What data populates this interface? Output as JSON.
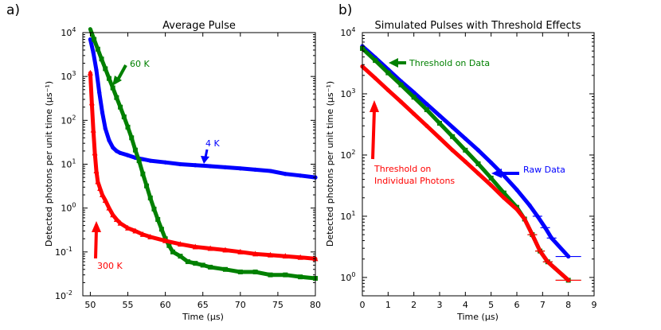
{
  "chart_data": [
    {
      "type": "scatter",
      "panel_label": "a)",
      "title": "Average Pulse",
      "xlabel": "Time (μs)",
      "ylabel": "Detected photons per unit time (μs⁻¹)",
      "xlim": [
        49,
        80
      ],
      "ylim_log10": [
        -2,
        4
      ],
      "xticks": [
        50,
        55,
        60,
        65,
        70,
        75,
        80
      ],
      "xtick_labels": [
        "50",
        "55",
        "60",
        "65",
        "70",
        "75",
        "80"
      ],
      "yticks_log10": [
        -2,
        -1,
        0,
        1,
        2,
        3,
        4
      ],
      "ytick_labels": [
        [
          "10",
          "-2"
        ],
        [
          "10",
          "-1"
        ],
        [
          "10",
          "0"
        ],
        [
          "10",
          "1"
        ],
        [
          "10",
          "2"
        ],
        [
          "10",
          "3"
        ],
        [
          "10",
          "4"
        ]
      ],
      "series": [
        {
          "name": "4 K",
          "color": "#0000ff",
          "marker": "circle",
          "x": [
            50.0,
            50.4,
            50.8,
            51.2,
            51.6,
            52.0,
            52.5,
            53.0,
            53.5,
            54.0,
            55.0,
            56.0,
            57.0,
            58.0,
            60.0,
            62.0,
            64.0,
            66.0,
            68.0,
            70.0,
            72.0,
            74.0,
            76.0,
            78.0,
            80.0
          ],
          "y": [
            7000,
            3500,
            1400,
            430,
            150,
            65,
            35,
            24,
            20,
            18,
            16,
            14,
            13,
            12,
            11,
            10,
            9.5,
            9,
            8.5,
            8,
            7.5,
            7,
            6,
            5.5,
            5
          ]
        },
        {
          "name": "60 K",
          "color": "#008000",
          "marker": "square",
          "x": [
            50.0,
            50.5,
            51.0,
            51.5,
            52.0,
            52.5,
            53.0,
            53.5,
            54.0,
            54.5,
            55.0,
            55.5,
            56.0,
            56.5,
            57.0,
            57.5,
            58.0,
            58.5,
            59.0,
            59.5,
            60.0,
            60.5,
            61.0,
            62.0,
            63.0,
            64.0,
            65.0,
            66.0,
            68.0,
            70.0,
            72.0,
            74.0,
            76.0,
            78.0,
            80.0
          ],
          "y": [
            12000,
            7000,
            4200,
            2500,
            1500,
            900,
            550,
            330,
            200,
            120,
            70,
            40,
            21,
            12,
            6,
            3.2,
            1.7,
            0.95,
            0.55,
            0.33,
            0.2,
            0.14,
            0.1,
            0.08,
            0.06,
            0.055,
            0.05,
            0.045,
            0.04,
            0.035,
            0.035,
            0.03,
            0.03,
            0.027,
            0.025
          ]
        },
        {
          "name": "300 K",
          "color": "#ff0000",
          "marker": "triangle",
          "x": [
            50.0,
            50.2,
            50.4,
            50.6,
            50.8,
            51.0,
            51.3,
            51.6,
            52.0,
            52.5,
            53.0,
            53.5,
            54.0,
            55.0,
            56.0,
            57.0,
            58.0,
            60.0,
            62.0,
            64.0,
            66.0,
            68.0,
            70.0,
            72.0,
            74.0,
            76.0,
            78.0,
            80.0
          ],
          "y": [
            1200,
            250,
            60,
            18,
            7,
            4,
            2.8,
            2,
            1.5,
            1,
            0.7,
            0.55,
            0.45,
            0.35,
            0.3,
            0.25,
            0.22,
            0.18,
            0.15,
            0.13,
            0.12,
            0.11,
            0.1,
            0.09,
            0.085,
            0.08,
            0.075,
            0.07
          ]
        }
      ],
      "annotations": [
        {
          "text": "60 K",
          "color": "#008000"
        },
        {
          "text": "4 K",
          "color": "#0000ff"
        },
        {
          "text": "300 K",
          "color": "#ff0000"
        }
      ]
    },
    {
      "type": "scatter",
      "panel_label": "b)",
      "title": "Simulated Pulses with Threshold Effects",
      "xlabel": "Time (μs)",
      "ylabel": "Detected photons per unit time (μs⁻¹)",
      "xlim": [
        0,
        9
      ],
      "ylim_log10": [
        -0.3,
        4
      ],
      "xticks": [
        0,
        1,
        2,
        3,
        4,
        5,
        6,
        7,
        8,
        9
      ],
      "xtick_labels": [
        "0",
        "1",
        "2",
        "3",
        "4",
        "5",
        "6",
        "7",
        "8",
        "9"
      ],
      "yticks_log10": [
        0,
        1,
        2,
        3,
        4
      ],
      "ytick_labels": [
        [
          "10",
          "0"
        ],
        [
          "10",
          "1"
        ],
        [
          "10",
          "2"
        ],
        [
          "10",
          "3"
        ],
        [
          "10",
          "4"
        ]
      ],
      "series": [
        {
          "name": "Raw Data",
          "color": "#0000ff",
          "marker": "circle",
          "x": [
            0.0,
            0.5,
            1.0,
            1.5,
            2.0,
            2.5,
            3.0,
            3.5,
            4.0,
            4.5,
            5.0,
            5.5,
            6.0,
            6.5,
            6.8,
            7.1,
            7.35,
            8.0
          ],
          "y": [
            6000,
            3900,
            2500,
            1600,
            1050,
            680,
            440,
            285,
            185,
            120,
            75,
            46,
            27,
            15,
            10,
            6.5,
            4.4,
            2.2
          ]
        },
        {
          "name": "Threshold on Data",
          "color": "#008000",
          "marker": "square",
          "x": [
            0.0,
            0.5,
            1.0,
            1.5,
            2.0,
            2.5,
            3.0,
            3.5,
            4.0,
            4.5,
            5.0,
            5.5,
            6.0,
            6.3,
            6.6,
            6.9,
            7.2,
            8.0
          ],
          "y": [
            5500,
            3500,
            2200,
            1400,
            880,
            550,
            330,
            200,
            120,
            72,
            42,
            24,
            14,
            9,
            5,
            2.7,
            1.8,
            0.9
          ]
        },
        {
          "name": "Threshold on Individual Photons",
          "color": "#ff0000",
          "marker": "circle",
          "x": [
            0.0,
            0.5,
            1.0,
            1.5,
            2.0,
            2.5,
            3.0,
            3.5,
            4.0,
            4.5,
            5.0,
            5.5,
            6.0,
            6.3,
            6.6,
            6.9,
            7.2,
            8.0
          ],
          "y": [
            2800,
            1800,
            1150,
            740,
            470,
            300,
            190,
            120,
            78,
            50,
            32,
            20,
            13,
            9,
            5,
            2.7,
            1.8,
            0.9
          ]
        }
      ],
      "annotations": [
        {
          "text": "Threshold on Data",
          "color": "#008000"
        },
        {
          "text": "Raw Data",
          "color": "#0000ff"
        },
        {
          "text": "Threshold on",
          "color": "#ff0000"
        },
        {
          "text": "Individual Photons",
          "color": "#ff0000"
        }
      ]
    }
  ]
}
